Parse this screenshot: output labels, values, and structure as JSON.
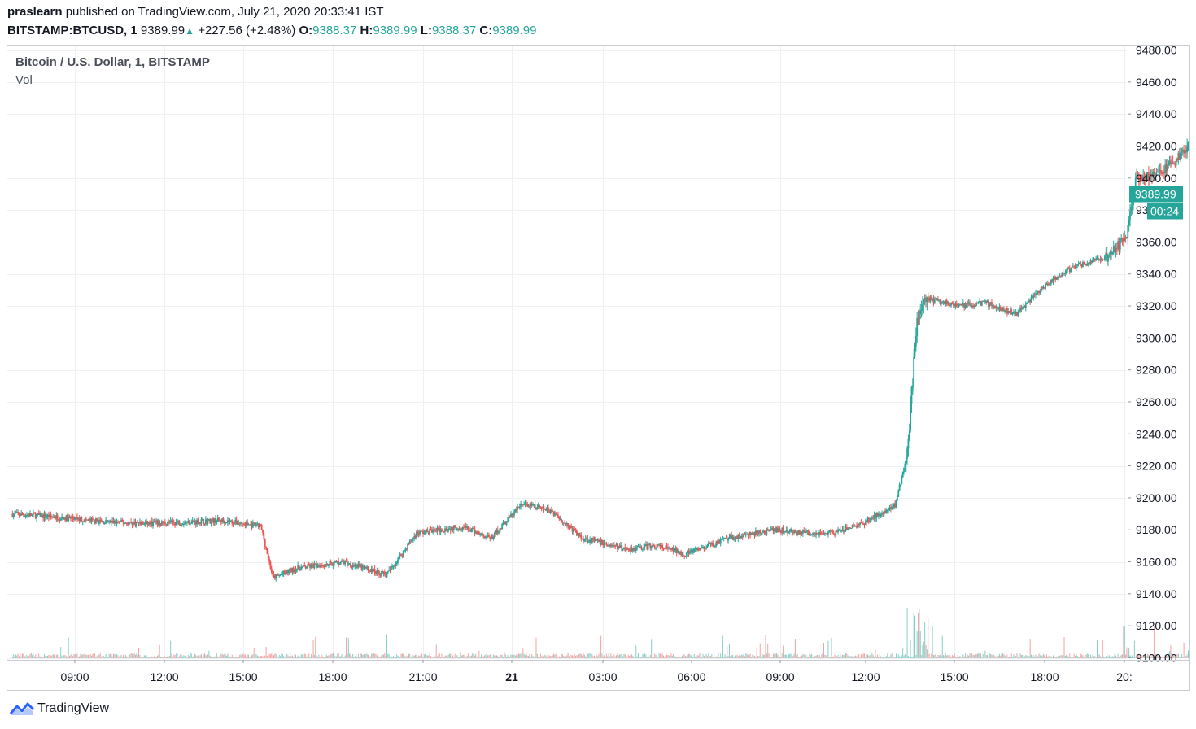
{
  "header": {
    "author": "praslearn",
    "published_text": "published on TradingView.com, July 21, 2020 20:33:41 IST",
    "symbol": "BITSTAMP:BTCUSD, 1",
    "last": "9389.99",
    "up_icon": "triangle-up-icon",
    "change": "+227.56 (+2.48%)",
    "o_label": "O:",
    "o_value": "9388.37",
    "h_label": "H:",
    "h_value": "9389.99",
    "l_label": "L:",
    "l_value": "9388.37",
    "c_label": "C:",
    "c_value": "9389.99"
  },
  "legend": {
    "title": "Bitcoin / U.S. Dollar, 1, BITSTAMP",
    "volume_label": "Vol"
  },
  "price_label": {
    "value": "9389.99",
    "countdown": "00:24"
  },
  "brand": {
    "name": "TradingView",
    "icon": "tradingview-logo-icon"
  },
  "colors": {
    "up": "#26a69a",
    "down": "#ef5350",
    "grid": "#eef0f3",
    "axis_text": "#131722"
  },
  "chart_data": {
    "type": "candlestick",
    "title": "Bitcoin / U.S. Dollar, 1, BITSTAMP",
    "ylim": [
      9100,
      9480
    ],
    "y_ticks": [
      "9100.00",
      "9120.00",
      "9140.00",
      "9160.00",
      "9180.00",
      "9200.00",
      "9220.00",
      "9240.00",
      "9260.00",
      "9280.00",
      "9300.00",
      "9320.00",
      "9340.00",
      "9360.00",
      "9380.00",
      "9400.00",
      "9420.00",
      "9440.00",
      "9460.00",
      "9480.00"
    ],
    "x_ticks": [
      {
        "label": "09:00",
        "bold": false
      },
      {
        "label": "12:00",
        "bold": false
      },
      {
        "label": "15:00",
        "bold": false
      },
      {
        "label": "18:00",
        "bold": false
      },
      {
        "label": "21:00",
        "bold": false
      },
      {
        "label": "21",
        "bold": true
      },
      {
        "label": "03:00",
        "bold": false
      },
      {
        "label": "06:00",
        "bold": false
      },
      {
        "label": "09:00",
        "bold": false
      },
      {
        "label": "12:00",
        "bold": false
      },
      {
        "label": "15:00",
        "bold": false
      },
      {
        "label": "18:00",
        "bold": false
      },
      {
        "label": "20:",
        "bold": false
      }
    ],
    "last_price": 9389.99,
    "price_path_approx": [
      [
        0,
        9190
      ],
      [
        1.5,
        9188
      ],
      [
        3,
        9185
      ],
      [
        4.5,
        9184
      ],
      [
        6,
        9185
      ],
      [
        7,
        9186
      ],
      [
        8.3,
        9182
      ],
      [
        8.7,
        9150
      ],
      [
        9.5,
        9156
      ],
      [
        11,
        9160
      ],
      [
        12.5,
        9152
      ],
      [
        13.5,
        9178
      ],
      [
        15,
        9182
      ],
      [
        16,
        9175
      ],
      [
        17,
        9196
      ],
      [
        18,
        9192
      ],
      [
        19,
        9175
      ],
      [
        20.5,
        9168
      ],
      [
        21.5,
        9170
      ],
      [
        22.5,
        9165
      ],
      [
        24,
        9175
      ],
      [
        25.5,
        9180
      ],
      [
        26.5,
        9178
      ],
      [
        27.5,
        9178
      ],
      [
        28.5,
        9185
      ],
      [
        29.5,
        9196
      ],
      [
        29.9,
        9230
      ],
      [
        30.2,
        9310
      ],
      [
        30.5,
        9325
      ],
      [
        31.5,
        9320
      ],
      [
        32.5,
        9322
      ],
      [
        33.5,
        9315
      ],
      [
        34.5,
        9333
      ],
      [
        35.5,
        9345
      ],
      [
        36.5,
        9350
      ],
      [
        37.2,
        9362
      ],
      [
        37.5,
        9398
      ],
      [
        38.5,
        9405
      ],
      [
        39.3,
        9420
      ],
      [
        40,
        9410
      ],
      [
        40.7,
        9385
      ],
      [
        41.2,
        9390
      ]
    ]
  }
}
